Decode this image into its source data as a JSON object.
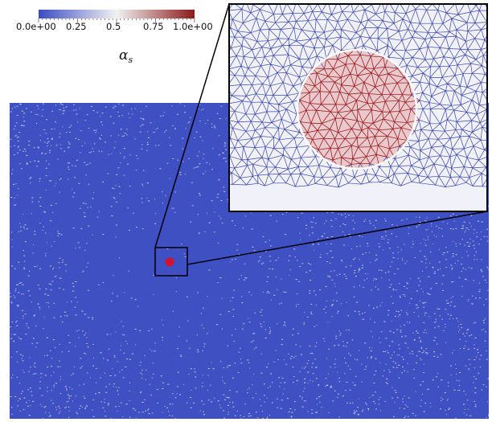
{
  "colorbar": {
    "tick_labels": [
      "0.0e+00",
      "0.25",
      "0.5",
      "0.75",
      "1.0e+00"
    ],
    "tick_values": [
      0,
      0.25,
      0.5,
      0.75,
      1.0
    ],
    "range": [
      0,
      1
    ],
    "colors": {
      "low": "#3b4cc0",
      "mid": "#f2f2f2",
      "high": "#8b1a1a"
    },
    "symbol": "α",
    "symbol_subscript": "s"
  },
  "field": {
    "background_color": "#3f51c2",
    "speckle_color": "#dfe4f6",
    "particle_color": "#d0122e",
    "zoom_box_color": "#000000"
  },
  "inset": {
    "background_color": "#f1f1fa",
    "mesh_outer_color": "#3b45a8",
    "mesh_inner_color": "#9e1f26",
    "particle_fill": "#cf8c8c",
    "particle_edge": "#ffffff"
  }
}
